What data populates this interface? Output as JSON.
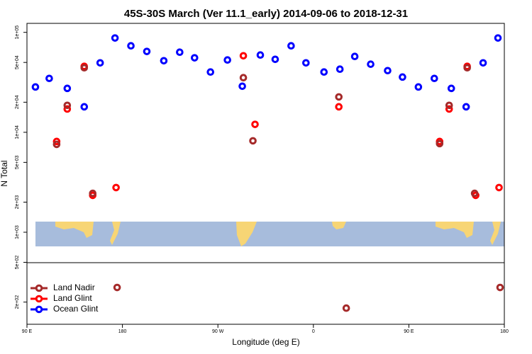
{
  "chart_data": {
    "type": "scatter",
    "title": "45S-30S March (Ver 11.1_early)   2014-09-06 to 2018-12-31",
    "x_label": "Longitude (deg E)",
    "y_label": "N Total",
    "ylog": true,
    "legend": "bottom-left",
    "xlim": [
      90,
      540
    ],
    "xticks": [
      {
        "value": 90,
        "label": "90 E"
      },
      180,
      {
        "value": 270,
        "label": "90 W"
      },
      {
        "value": 360,
        "label": "0"
      },
      {
        "value": 450,
        "label": "90 E"
      },
      {
        "value": 540,
        "label": "180"
      }
    ],
    "ylim": [
      120,
      123000
    ],
    "yticks": [
      {
        "value": 200,
        "label": "2e+02"
      },
      {
        "value": 500,
        "label": "5e+02"
      },
      {
        "value": 1000,
        "label": "1e+03"
      },
      {
        "value": 2000,
        "label": "2e+03"
      },
      {
        "value": 5000,
        "label": "5e+03"
      },
      {
        "value": 10000,
        "label": "1e+04"
      },
      {
        "value": 20000,
        "label": "2e+04"
      },
      {
        "value": 50000,
        "label": "5e+04"
      },
      {
        "value": 100000,
        "label": "1e+05"
      }
    ],
    "series": [
      {
        "name": "Ocean Glint",
        "color": "#0000ff",
        "x": [
          98,
          111,
          128,
          144,
          159,
          173,
          188,
          203,
          219,
          234,
          248,
          263,
          279,
          293,
          310,
          324,
          339,
          353,
          370,
          385,
          399,
          414,
          430,
          444,
          459,
          474,
          490,
          504,
          520,
          534
        ],
        "values": [
          28400,
          34600,
          27500,
          18000,
          49500,
          87800,
          73300,
          64400,
          52000,
          63300,
          55600,
          40100,
          52900,
          28900,
          59300,
          53700,
          73300,
          49500,
          40100,
          42800,
          57400,
          48000,
          41400,
          35700,
          28400,
          34600,
          27500,
          18000,
          49500,
          87800
        ]
      },
      {
        "name": "Land Glint",
        "color": "#ff0000",
        "x": [
          118,
          128,
          144,
          152,
          174,
          294,
          305,
          384,
          479,
          488,
          505,
          513,
          535
        ],
        "values": [
          8090,
          17100,
          45700,
          2340,
          2800,
          58300,
          12000,
          18000,
          8090,
          17100,
          45700,
          2340,
          2800
        ]
      },
      {
        "name": "Land Nadir",
        "color": "#a52a2a",
        "x": [
          118,
          128,
          144,
          152,
          175,
          294,
          303,
          384,
          391,
          479,
          488,
          505,
          512,
          536
        ],
        "values": [
          7570,
          18600,
          44200,
          2450,
          280,
          35200,
          8220,
          22600,
          174,
          7700,
          18600,
          44200,
          2450,
          280
        ]
      }
    ]
  }
}
